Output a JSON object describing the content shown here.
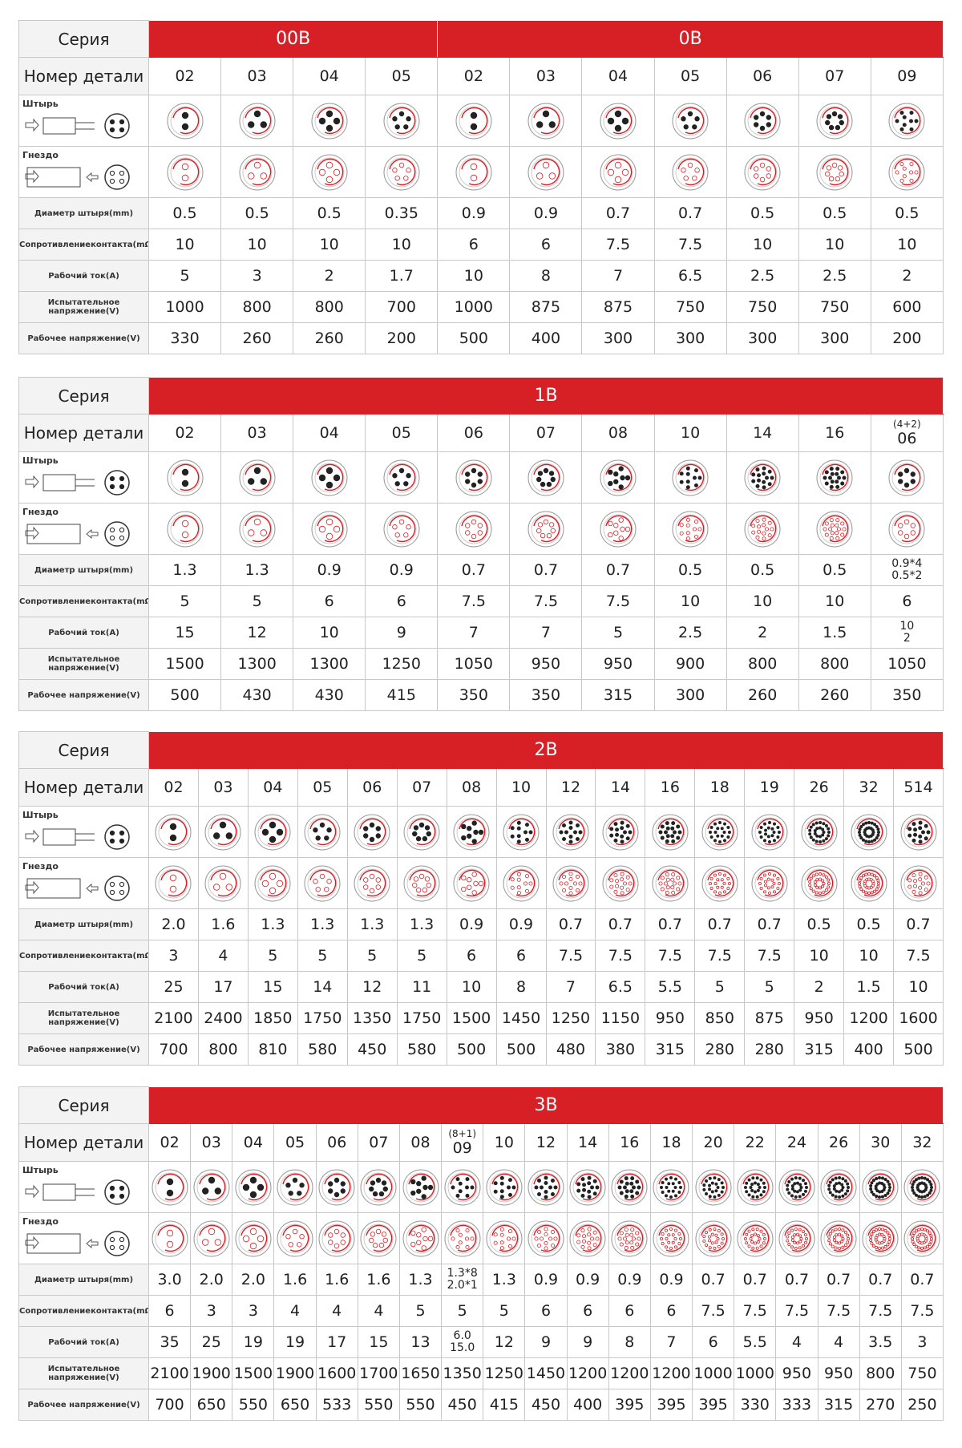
{
  "labels": {
    "series": "Серия",
    "part": "Номер детали",
    "pin": "Штырь",
    "socket": "Гнездо",
    "rows": [
      "Диаметр штыря(mm)",
      "Сопротивлениеконтакта(mΩ)",
      "Рабочий ток(A)",
      "Испытательное напряжение(V)",
      "Рабочее напряжение(V)"
    ]
  },
  "tables": [
    {
      "groups": [
        {
          "name": "00B",
          "span": 4
        },
        {
          "name": "0B",
          "span": 7
        }
      ],
      "parts": [
        "02",
        "03",
        "04",
        "05",
        "02",
        "03",
        "04",
        "05",
        "06",
        "07",
        "09"
      ],
      "rows": [
        [
          "0.5",
          "0.5",
          "0.5",
          "0.35",
          "0.9",
          "0.9",
          "0.7",
          "0.7",
          "0.5",
          "0.5",
          "0.5"
        ],
        [
          "10",
          "10",
          "10",
          "10",
          "6",
          "6",
          "7.5",
          "7.5",
          "10",
          "10",
          "10"
        ],
        [
          "5",
          "3",
          "2",
          "1.7",
          "10",
          "8",
          "7",
          "6.5",
          "2.5",
          "2.5",
          "2"
        ],
        [
          "1000",
          "800",
          "800",
          "700",
          "1000",
          "875",
          "875",
          "750",
          "750",
          "750",
          "600"
        ],
        [
          "330",
          "260",
          "260",
          "200",
          "500",
          "400",
          "300",
          "300",
          "300",
          "300",
          "200"
        ]
      ]
    },
    {
      "groups": [
        {
          "name": "1B",
          "span": 11
        }
      ],
      "parts": [
        "02",
        "03",
        "04",
        "05",
        "06",
        "07",
        "08",
        "10",
        "14",
        "16",
        {
          "note": "(4+2)",
          "number": "06"
        }
      ],
      "rows": [
        [
          "1.3",
          "1.3",
          "0.9",
          "0.9",
          "0.7",
          "0.7",
          "0.7",
          "0.5",
          "0.5",
          "0.5",
          [
            "0.9*4",
            "0.5*2"
          ]
        ],
        [
          "5",
          "5",
          "6",
          "6",
          "7.5",
          "7.5",
          "7.5",
          "10",
          "10",
          "10",
          "6"
        ],
        [
          "15",
          "12",
          "10",
          "9",
          "7",
          "7",
          "5",
          "2.5",
          "2",
          "1.5",
          [
            "10",
            "2"
          ]
        ],
        [
          "1500",
          "1300",
          "1300",
          "1250",
          "1050",
          "950",
          "950",
          "900",
          "800",
          "800",
          "1050"
        ],
        [
          "500",
          "430",
          "430",
          "415",
          "350",
          "350",
          "315",
          "300",
          "260",
          "260",
          "350"
        ]
      ]
    },
    {
      "groups": [
        {
          "name": "2B",
          "span": 16
        }
      ],
      "parts": [
        "02",
        "03",
        "04",
        "05",
        "06",
        "07",
        "08",
        "10",
        "12",
        "14",
        "16",
        "18",
        "19",
        "26",
        "32",
        "514"
      ],
      "rows": [
        [
          "2.0",
          "1.6",
          "1.3",
          "1.3",
          "1.3",
          "1.3",
          "0.9",
          "0.9",
          "0.7",
          "0.7",
          "0.7",
          "0.7",
          "0.7",
          "0.5",
          "0.5",
          "0.7"
        ],
        [
          "3",
          "4",
          "5",
          "5",
          "5",
          "5",
          "6",
          "6",
          "7.5",
          "7.5",
          "7.5",
          "7.5",
          "7.5",
          "10",
          "10",
          "7.5"
        ],
        [
          "25",
          "17",
          "15",
          "14",
          "12",
          "11",
          "10",
          "8",
          "7",
          "6.5",
          "5.5",
          "5",
          "5",
          "2",
          "1.5",
          "10"
        ],
        [
          "2100",
          "2400",
          "1850",
          "1750",
          "1350",
          "1750",
          "1500",
          "1450",
          "1250",
          "1150",
          "950",
          "850",
          "875",
          "950",
          "1200",
          "1600"
        ],
        [
          "700",
          "800",
          "810",
          "580",
          "450",
          "580",
          "500",
          "500",
          "480",
          "380",
          "315",
          "280",
          "280",
          "315",
          "400",
          "500"
        ]
      ]
    },
    {
      "groups": [
        {
          "name": "3B",
          "span": 19
        }
      ],
      "parts": [
        "02",
        "03",
        "04",
        "05",
        "06",
        "07",
        "08",
        {
          "note": "(8+1)",
          "number": "09"
        },
        "10",
        "12",
        "14",
        "16",
        "18",
        "20",
        "22",
        "24",
        "26",
        "30",
        "32"
      ],
      "rows": [
        [
          "3.0",
          "2.0",
          "2.0",
          "1.6",
          "1.6",
          "1.6",
          "1.3",
          [
            "1.3*8",
            "2.0*1"
          ],
          "1.3",
          "0.9",
          "0.9",
          "0.9",
          "0.9",
          "0.7",
          "0.7",
          "0.7",
          "0.7",
          "0.7",
          "0.7"
        ],
        [
          "6",
          "3",
          "3",
          "4",
          "4",
          "4",
          "5",
          "5",
          "5",
          "6",
          "6",
          "6",
          "6",
          "7.5",
          "7.5",
          "7.5",
          "7.5",
          "7.5",
          "7.5"
        ],
        [
          "35",
          "25",
          "19",
          "19",
          "17",
          "15",
          "13",
          [
            "6.0",
            "15.0"
          ],
          "12",
          "9",
          "9",
          "8",
          "7",
          "6",
          "5.5",
          "4",
          "4",
          "3.5",
          "3"
        ],
        [
          "2100",
          "1900",
          "1500",
          "1900",
          "1600",
          "1700",
          "1650",
          "1350",
          "1250",
          "1450",
          "1200",
          "1200",
          "1200",
          "1000",
          "1000",
          "950",
          "950",
          "800",
          "750"
        ],
        [
          "700",
          "650",
          "550",
          "650",
          "533",
          "550",
          "550",
          "450",
          "415",
          "450",
          "400",
          "395",
          "395",
          "395",
          "330",
          "333",
          "315",
          "270",
          "250"
        ]
      ]
    }
  ]
}
